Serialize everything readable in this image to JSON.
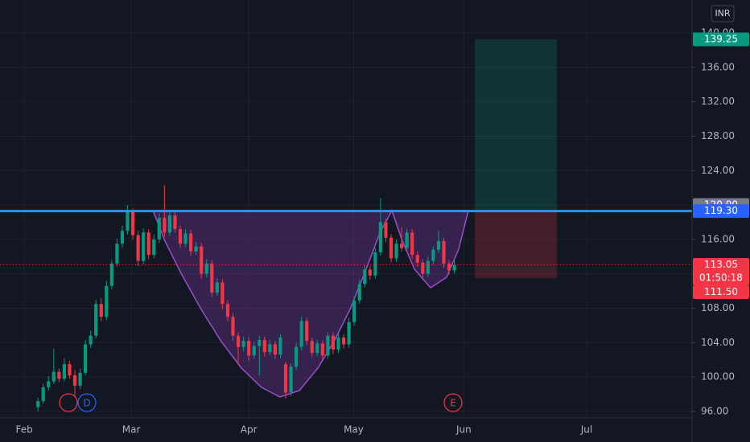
{
  "chart_data": {
    "type": "candlestick",
    "currency": "INR",
    "up_color": "#089981",
    "down_color": "#f23645",
    "grid": true,
    "xlim": [
      -7.2,
      124.1
    ],
    "xticks": [
      {
        "value": -2.6,
        "label": "Feb"
      },
      {
        "value": 17.7,
        "label": "Mar"
      },
      {
        "value": 40.0,
        "label": "Apr"
      },
      {
        "value": 59.9,
        "label": "May"
      },
      {
        "value": 80.8,
        "label": "Jun"
      },
      {
        "value": 104.1,
        "label": "Jul"
      }
    ],
    "ylim": [
      95.25,
      143.83
    ],
    "yticks": [
      {
        "value": 96,
        "label": "96.00"
      },
      {
        "value": 100,
        "label": "100.00"
      },
      {
        "value": 104,
        "label": "104.00"
      },
      {
        "value": 108,
        "label": "108.00"
      },
      {
        "value": 112,
        "label": "112.00"
      },
      {
        "value": 116,
        "label": "116.00"
      },
      {
        "value": 120,
        "label": "120.00"
      },
      {
        "value": 124,
        "label": "124.00"
      },
      {
        "value": 128,
        "label": "128.00"
      },
      {
        "value": 132,
        "label": "132.00"
      },
      {
        "value": 136,
        "label": "136.00"
      },
      {
        "value": 140,
        "label": "140.00"
      }
    ],
    "open": [
      96.5,
      97.2,
      98.8,
      99.5,
      100.6,
      99.8,
      101.5,
      100.2,
      99.0,
      100.5,
      103.8,
      104.8,
      108.5,
      107.0,
      110.6,
      113.2,
      115.5,
      117.0,
      119.2,
      116.5,
      113.5,
      116.8,
      114.2,
      116.0,
      118.5,
      116.8,
      118.8,
      117.2,
      115.5,
      116.7,
      114.6,
      115.2,
      112.0,
      113.2,
      109.8,
      111.0,
      108.5,
      107.0,
      104.8,
      103.5,
      104.2,
      102.5,
      103.6,
      104.3,
      102.9,
      103.8,
      102.6,
      101.5,
      98.2,
      101.2,
      103.5,
      106.5,
      104.2,
      102.8,
      103.9,
      102.5,
      104.8,
      103.2,
      104.6,
      103.8,
      106.4,
      108.9,
      110.8,
      112.5,
      111.8,
      114.5,
      118.0,
      116.2,
      113.8,
      115.5,
      115.0,
      116.8,
      114.2,
      113.3,
      112.0,
      113.5,
      114.8,
      115.8,
      113.2,
      112.4
    ],
    "high": [
      97.6,
      99.2,
      100.1,
      103.3,
      101.0,
      102.2,
      101.9,
      100.8,
      101.0,
      104.3,
      105.4,
      109.0,
      109.2,
      111.2,
      113.6,
      116.1,
      117.6,
      120.0,
      119.6,
      117.0,
      117.3,
      117.2,
      116.6,
      119.0,
      122.3,
      119.3,
      119.2,
      117.6,
      117.2,
      117.1,
      115.7,
      115.6,
      113.7,
      113.6,
      111.5,
      111.4,
      108.9,
      107.4,
      105.2,
      104.7,
      104.6,
      104.1,
      104.8,
      104.7,
      104.3,
      104.2,
      105.0,
      101.8,
      101.6,
      104.0,
      107.0,
      106.9,
      104.6,
      104.3,
      104.3,
      105.2,
      105.2,
      105.0,
      105.0,
      106.9,
      109.4,
      111.3,
      113.0,
      112.9,
      115.0,
      120.8,
      118.4,
      116.6,
      116.0,
      117.4,
      117.2,
      117.2,
      114.6,
      113.7,
      114.0,
      115.2,
      117.0,
      116.2,
      113.6,
      113.6
    ],
    "low": [
      96.0,
      96.9,
      98.4,
      99.2,
      99.4,
      99.5,
      99.8,
      97.8,
      98.6,
      100.2,
      103.4,
      104.5,
      106.5,
      106.6,
      110.2,
      112.8,
      115.0,
      116.6,
      116.0,
      112.9,
      113.1,
      113.7,
      113.8,
      115.6,
      116.3,
      116.4,
      116.8,
      115.0,
      115.1,
      114.1,
      114.2,
      111.4,
      111.6,
      109.3,
      109.4,
      107.9,
      106.5,
      104.2,
      101.4,
      103.0,
      101.9,
      102.1,
      100.2,
      102.4,
      102.5,
      102.1,
      102.2,
      97.5,
      97.8,
      100.8,
      103.1,
      103.7,
      102.3,
      102.4,
      102.0,
      102.1,
      102.7,
      102.8,
      103.3,
      103.4,
      106.0,
      108.5,
      110.4,
      111.3,
      111.4,
      114.1,
      115.7,
      113.3,
      113.4,
      114.6,
      114.6,
      113.7,
      112.8,
      111.5,
      111.6,
      113.1,
      114.4,
      112.7,
      111.9,
      112.0
    ],
    "close": [
      97.2,
      98.8,
      99.5,
      100.6,
      99.8,
      101.5,
      100.2,
      99.0,
      100.5,
      103.8,
      104.8,
      108.5,
      107.0,
      110.6,
      113.2,
      115.5,
      117.0,
      119.2,
      116.5,
      113.5,
      116.8,
      114.2,
      116.0,
      118.5,
      116.8,
      118.8,
      117.2,
      115.5,
      116.7,
      114.6,
      115.2,
      112.0,
      113.2,
      109.8,
      111.0,
      108.5,
      107.0,
      104.8,
      103.5,
      104.2,
      102.5,
      103.6,
      104.3,
      102.9,
      103.8,
      102.6,
      104.6,
      98.2,
      101.2,
      103.5,
      106.5,
      104.2,
      102.8,
      103.9,
      102.5,
      104.8,
      103.2,
      104.6,
      103.8,
      106.4,
      108.9,
      110.8,
      112.5,
      111.8,
      114.5,
      118.0,
      116.2,
      113.8,
      115.5,
      115.0,
      116.8,
      114.2,
      113.3,
      112.0,
      113.5,
      114.8,
      115.8,
      113.2,
      112.4,
      113.05
    ],
    "horizontal_line": {
      "price": 119.3,
      "color": "#2196f3"
    },
    "position": {
      "target": 139.25,
      "entry": 119.3,
      "stop": 111.5
    },
    "price_labels": [
      {
        "text": "139.25",
        "price": 139.25,
        "color": "#089981"
      },
      {
        "text": "120.00",
        "price": 120,
        "color": "#787b86"
      },
      {
        "text": "119.30",
        "price": 119.3,
        "color": "#2962ff"
      },
      {
        "text": "113.05",
        "price": 113.05,
        "color": "#f23645",
        "countdown": "01:50:18"
      },
      {
        "text": "111.50",
        "price": 111.5,
        "color": "#f23645"
      }
    ],
    "events": [
      {
        "label": "D",
        "color": "#2962ff"
      },
      {
        "label": "E",
        "color": "#f23645"
      }
    ]
  }
}
